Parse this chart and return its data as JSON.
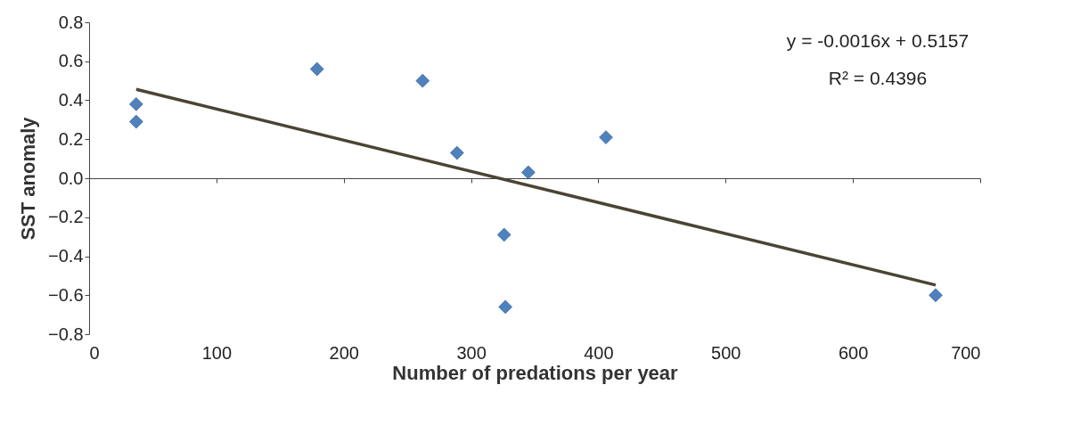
{
  "chart_data": {
    "type": "scatter",
    "xlabel": "Number of predations per year",
    "ylabel": "SST anomaly",
    "xlim": [
      0,
      700
    ],
    "xticks": [
      0,
      100,
      200,
      300,
      400,
      500,
      600,
      700
    ],
    "ylim": [
      -0.8,
      0.8
    ],
    "yticks": [
      -0.8,
      -0.6,
      -0.4,
      -0.2,
      {
        "value": 0,
        "label": "0.0"
      },
      0.2,
      0.4,
      0.6,
      0.8
    ],
    "series": [
      {
        "marker": "diamond",
        "color": "#4f81bd",
        "x": [
          37,
          37,
          179,
          262,
          289,
          326,
          327,
          345,
          406,
          665
        ],
        "values": [
          0.38,
          0.29,
          0.56,
          0.5,
          0.13,
          -0.29,
          -0.66,
          0.03,
          0.21,
          -0.6
        ]
      },
      {
        "type": "line",
        "marker": "none",
        "color": "#4a4433",
        "x": [
          37,
          665
        ],
        "values": [
          0.456,
          -0.548
        ]
      }
    ],
    "annotations": [
      "y = -0.0016x + 0.5157",
      "R² = 0.4396"
    ]
  }
}
